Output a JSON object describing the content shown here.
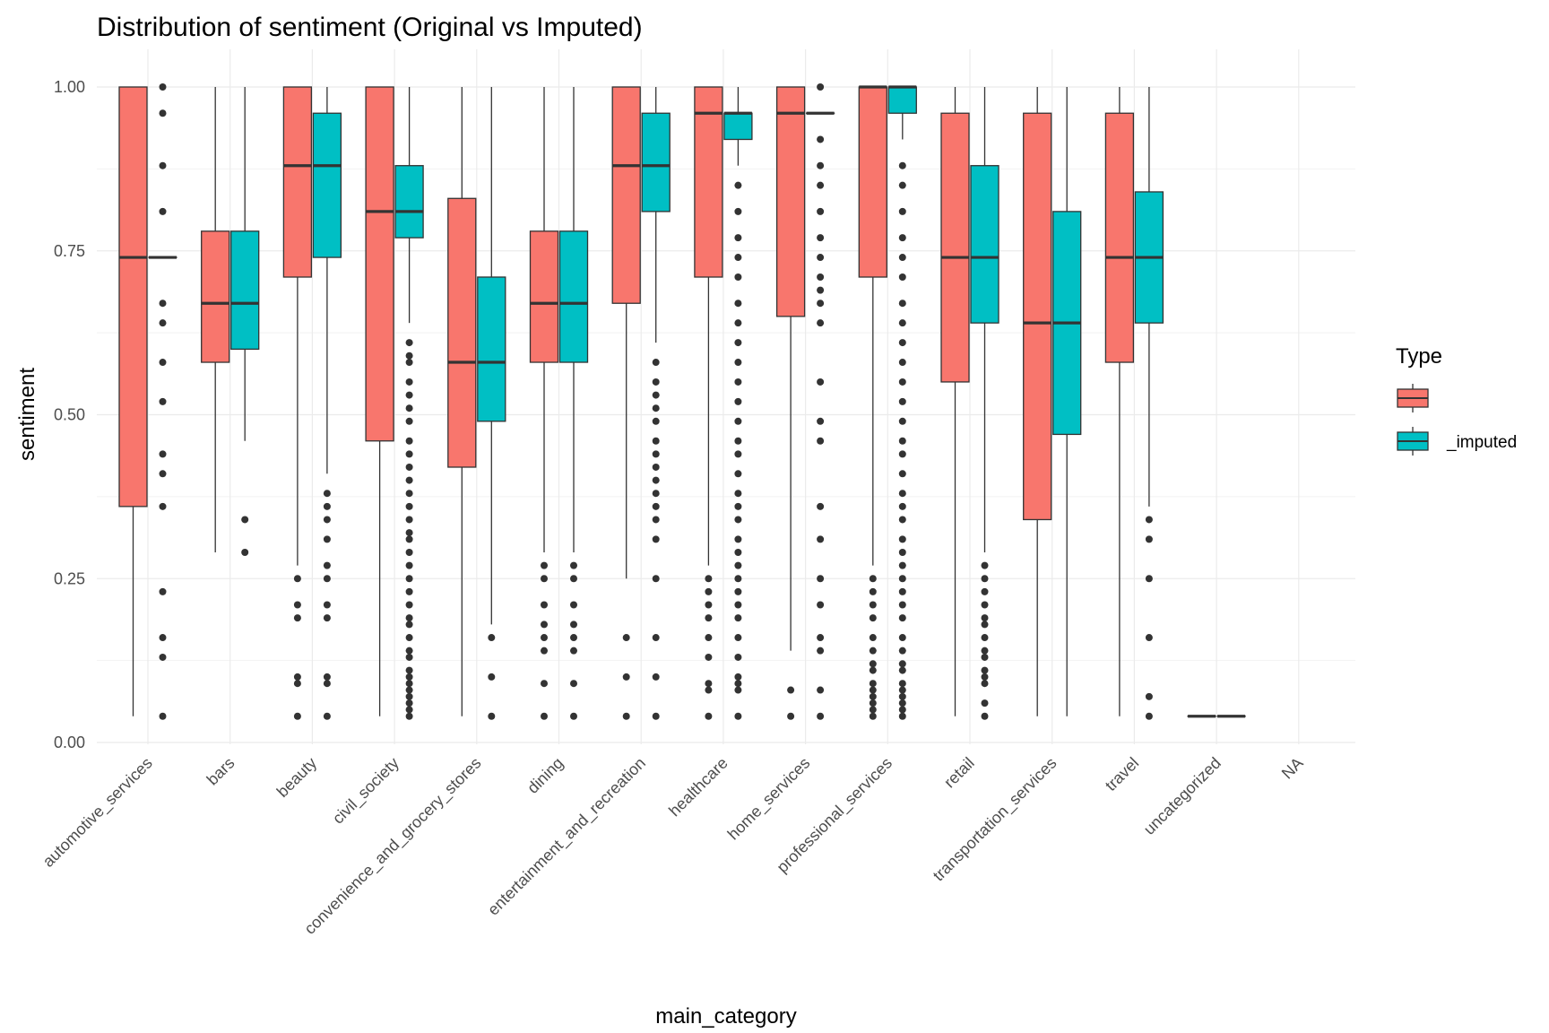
{
  "chart_data": {
    "type": "boxplot",
    "title": "Distribution of sentiment (Original vs Imputed)",
    "xlabel": "main_category",
    "ylabel": "sentiment",
    "ylim": [
      0,
      1
    ],
    "yticks": [
      0,
      0.25,
      0.5,
      0.75,
      1
    ],
    "ytick_labels": [
      "0.00",
      "0.25",
      "0.50",
      "0.75",
      "1.00"
    ],
    "grid": true,
    "legend": {
      "title": "Type",
      "position": "right",
      "entries": [
        {
          "label": "",
          "color": "#F8766D"
        },
        {
          "label": "_imputed",
          "color": "#00BFC4"
        }
      ]
    },
    "categories": [
      "automotive_services",
      "bars",
      "beauty",
      "civil_society",
      "convenience_and_grocery_stores",
      "dining",
      "entertainment_and_recreation",
      "healthcare",
      "home_services",
      "professional_services",
      "retail",
      "transportation_services",
      "travel",
      "uncategorized",
      "NA"
    ],
    "series": [
      {
        "label": "",
        "color": "#F8766D",
        "boxes": [
          {
            "low": 0.04,
            "q1": 0.36,
            "median": 0.74,
            "q3": 1.0,
            "high": 1.0,
            "outliers": []
          },
          {
            "low": 0.29,
            "q1": 0.58,
            "median": 0.67,
            "q3": 0.78,
            "high": 1.0,
            "outliers": []
          },
          {
            "low": 0.27,
            "q1": 0.71,
            "median": 0.88,
            "q3": 1.0,
            "high": 1.0,
            "outliers": [
              0.25,
              0.21,
              0.19,
              0.1,
              0.09,
              0.04
            ]
          },
          {
            "low": 0.04,
            "q1": 0.46,
            "median": 0.81,
            "q3": 1.0,
            "high": 1.0,
            "outliers": []
          },
          {
            "low": 0.04,
            "q1": 0.42,
            "median": 0.58,
            "q3": 0.83,
            "high": 1.0,
            "outliers": []
          },
          {
            "low": 0.29,
            "q1": 0.58,
            "median": 0.67,
            "q3": 0.78,
            "high": 1.0,
            "outliers": [
              0.27,
              0.25,
              0.21,
              0.18,
              0.16,
              0.14,
              0.09,
              0.04
            ]
          },
          {
            "low": 0.25,
            "q1": 0.67,
            "median": 0.88,
            "q3": 1.0,
            "high": 1.0,
            "outliers": [
              0.16,
              0.1,
              0.04
            ]
          },
          {
            "low": 0.27,
            "q1": 0.71,
            "median": 0.96,
            "q3": 1.0,
            "high": 1.0,
            "outliers": [
              0.25,
              0.23,
              0.21,
              0.19,
              0.16,
              0.13,
              0.09,
              0.08,
              0.04
            ]
          },
          {
            "low": 0.14,
            "q1": 0.65,
            "median": 0.96,
            "q3": 1.0,
            "high": 1.0,
            "outliers": [
              0.08,
              0.04
            ]
          },
          {
            "low": 0.27,
            "q1": 0.71,
            "median": 1.0,
            "q3": 1.0,
            "high": 1.0,
            "outliers": [
              0.25,
              0.23,
              0.21,
              0.19,
              0.16,
              0.14,
              0.12,
              0.11,
              0.09,
              0.08,
              0.07,
              0.06,
              0.05,
              0.04
            ]
          },
          {
            "low": 0.04,
            "q1": 0.55,
            "median": 0.74,
            "q3": 0.96,
            "high": 1.0,
            "outliers": []
          },
          {
            "low": 0.04,
            "q1": 0.34,
            "median": 0.64,
            "q3": 0.96,
            "high": 1.0,
            "outliers": []
          },
          {
            "low": 0.04,
            "q1": 0.58,
            "median": 0.74,
            "q3": 0.96,
            "high": 1.0,
            "outliers": []
          },
          {
            "low": 0.04,
            "q1": 0.04,
            "median": 0.04,
            "q3": 0.04,
            "high": 0.04,
            "outliers": []
          },
          null
        ]
      },
      {
        "label": "_imputed",
        "color": "#00BFC4",
        "boxes": [
          {
            "low": 0.74,
            "q1": 0.74,
            "median": 0.74,
            "q3": 0.74,
            "high": 0.74,
            "outliers": [
              1.0,
              0.96,
              0.88,
              0.81,
              0.67,
              0.64,
              0.58,
              0.52,
              0.44,
              0.41,
              0.36,
              0.23,
              0.16,
              0.13,
              0.04
            ]
          },
          {
            "low": 0.46,
            "q1": 0.6,
            "median": 0.67,
            "q3": 0.78,
            "high": 1.0,
            "outliers": [
              0.34,
              0.29
            ]
          },
          {
            "low": 0.41,
            "q1": 0.74,
            "median": 0.88,
            "q3": 0.96,
            "high": 1.0,
            "outliers": [
              0.38,
              0.36,
              0.34,
              0.31,
              0.27,
              0.25,
              0.21,
              0.19,
              0.1,
              0.09,
              0.04
            ]
          },
          {
            "low": 0.64,
            "q1": 0.77,
            "median": 0.81,
            "q3": 0.88,
            "high": 1.0,
            "outliers": [
              0.61,
              0.59,
              0.58,
              0.55,
              0.53,
              0.51,
              0.49,
              0.46,
              0.44,
              0.42,
              0.4,
              0.38,
              0.36,
              0.34,
              0.32,
              0.31,
              0.29,
              0.27,
              0.25,
              0.23,
              0.21,
              0.19,
              0.18,
              0.16,
              0.14,
              0.13,
              0.11,
              0.1,
              0.09,
              0.08,
              0.07,
              0.06,
              0.05,
              0.04
            ]
          },
          {
            "low": 0.18,
            "q1": 0.49,
            "median": 0.58,
            "q3": 0.71,
            "high": 1.0,
            "outliers": [
              0.16,
              0.1,
              0.04
            ]
          },
          {
            "low": 0.29,
            "q1": 0.58,
            "median": 0.67,
            "q3": 0.78,
            "high": 1.0,
            "outliers": [
              0.27,
              0.25,
              0.21,
              0.18,
              0.16,
              0.14,
              0.09,
              0.04
            ]
          },
          {
            "low": 0.61,
            "q1": 0.81,
            "median": 0.88,
            "q3": 0.96,
            "high": 1.0,
            "outliers": [
              0.58,
              0.55,
              0.53,
              0.51,
              0.49,
              0.46,
              0.44,
              0.42,
              0.4,
              0.38,
              0.36,
              0.34,
              0.31,
              0.25,
              0.16,
              0.1,
              0.04
            ]
          },
          {
            "low": 0.88,
            "q1": 0.92,
            "median": 0.96,
            "q3": 0.96,
            "high": 1.0,
            "outliers": [
              0.85,
              0.81,
              0.77,
              0.74,
              0.71,
              0.67,
              0.64,
              0.61,
              0.58,
              0.55,
              0.52,
              0.49,
              0.46,
              0.44,
              0.41,
              0.38,
              0.36,
              0.34,
              0.31,
              0.29,
              0.27,
              0.25,
              0.23,
              0.21,
              0.19,
              0.16,
              0.13,
              0.1,
              0.09,
              0.08,
              0.04
            ]
          },
          {
            "low": 0.96,
            "q1": 0.96,
            "median": 0.96,
            "q3": 0.96,
            "high": 0.96,
            "outliers": [
              1.0,
              0.92,
              0.88,
              0.85,
              0.81,
              0.77,
              0.74,
              0.71,
              0.69,
              0.67,
              0.64,
              0.55,
              0.49,
              0.46,
              0.36,
              0.31,
              0.25,
              0.21,
              0.16,
              0.14,
              0.08,
              0.04
            ]
          },
          {
            "low": 0.92,
            "q1": 0.96,
            "median": 1.0,
            "q3": 1.0,
            "high": 1.0,
            "outliers": [
              0.88,
              0.85,
              0.81,
              0.77,
              0.74,
              0.71,
              0.67,
              0.64,
              0.61,
              0.58,
              0.55,
              0.52,
              0.49,
              0.46,
              0.44,
              0.41,
              0.38,
              0.36,
              0.34,
              0.31,
              0.29,
              0.27,
              0.25,
              0.23,
              0.21,
              0.19,
              0.16,
              0.14,
              0.12,
              0.11,
              0.09,
              0.08,
              0.07,
              0.06,
              0.05,
              0.04
            ]
          },
          {
            "low": 0.29,
            "q1": 0.64,
            "median": 0.74,
            "q3": 0.88,
            "high": 1.0,
            "outliers": [
              0.27,
              0.25,
              0.23,
              0.21,
              0.19,
              0.18,
              0.16,
              0.14,
              0.13,
              0.11,
              0.1,
              0.09,
              0.06,
              0.04
            ]
          },
          {
            "low": 0.04,
            "q1": 0.47,
            "median": 0.64,
            "q3": 0.81,
            "high": 1.0,
            "outliers": []
          },
          {
            "low": 0.36,
            "q1": 0.64,
            "median": 0.74,
            "q3": 0.84,
            "high": 1.0,
            "outliers": [
              0.34,
              0.31,
              0.25,
              0.16,
              0.07,
              0.04
            ]
          },
          {
            "low": 0.04,
            "q1": 0.04,
            "median": 0.04,
            "q3": 0.04,
            "high": 0.04,
            "outliers": []
          },
          null
        ]
      }
    ]
  }
}
